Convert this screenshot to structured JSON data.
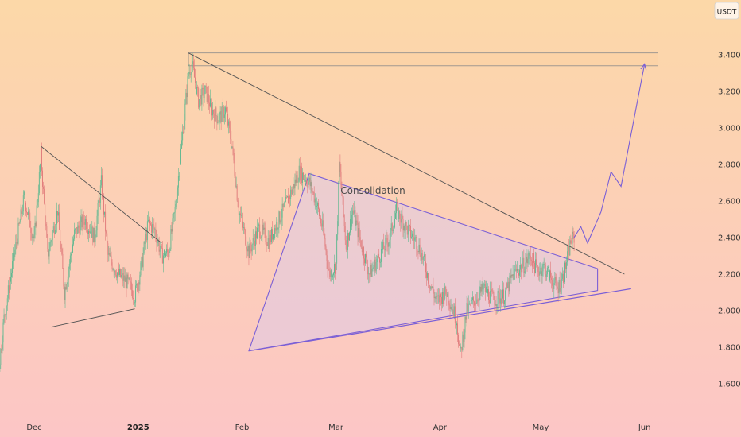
{
  "chart_data": {
    "type": "candlestick",
    "currency": "USDT",
    "ylim": [
      1.44,
      3.5
    ],
    "y_ticks": [
      {
        "value": 3.4,
        "label": "3.4000"
      },
      {
        "value": 3.2,
        "label": "3.2000"
      },
      {
        "value": 3.0,
        "label": "3.0000"
      },
      {
        "value": 2.8,
        "label": "2.8000"
      },
      {
        "value": 2.6,
        "label": "2.6000"
      },
      {
        "value": 2.4,
        "label": "2.4000"
      },
      {
        "value": 2.2,
        "label": "2.2000"
      },
      {
        "value": 2.0,
        "label": "2.0000"
      },
      {
        "value": 1.8,
        "label": "1.8000"
      },
      {
        "value": 1.6,
        "label": "1.6000"
      }
    ],
    "x_ticks": [
      {
        "date": "2024-12-01",
        "label": "Dec"
      },
      {
        "date": "2025-01-01",
        "label": "2025",
        "bold": true
      },
      {
        "date": "2025-02-01",
        "label": "Feb"
      },
      {
        "date": "2025-03-01",
        "label": "Mar"
      },
      {
        "date": "2025-04-01",
        "label": "Apr"
      },
      {
        "date": "2025-05-01",
        "label": "May"
      },
      {
        "date": "2025-06-01",
        "label": "Jun"
      }
    ],
    "grid": false,
    "price_path": [
      [
        "2024-11-10",
        1.52
      ],
      [
        "2024-11-15",
        1.5
      ],
      [
        "2024-11-20",
        1.6
      ],
      [
        "2024-11-22",
        1.96
      ],
      [
        "2024-11-25",
        2.3
      ],
      [
        "2024-11-28",
        2.62
      ],
      [
        "2024-12-01",
        2.38
      ],
      [
        "2024-12-03",
        2.85
      ],
      [
        "2024-12-05",
        2.3
      ],
      [
        "2024-12-08",
        2.55
      ],
      [
        "2024-12-10",
        2.1
      ],
      [
        "2024-12-13",
        2.42
      ],
      [
        "2024-12-16",
        2.5
      ],
      [
        "2024-12-19",
        2.4
      ],
      [
        "2024-12-21",
        2.7
      ],
      [
        "2024-12-23",
        2.3
      ],
      [
        "2024-12-26",
        2.2
      ],
      [
        "2024-12-29",
        2.15
      ],
      [
        "2024-12-31",
        2.08
      ],
      [
        "2025-01-02",
        2.25
      ],
      [
        "2025-01-04",
        2.48
      ],
      [
        "2025-01-06",
        2.44
      ],
      [
        "2025-01-08",
        2.3
      ],
      [
        "2025-01-10",
        2.32
      ],
      [
        "2025-01-12",
        2.55
      ],
      [
        "2025-01-14",
        2.92
      ],
      [
        "2025-01-16",
        3.3
      ],
      [
        "2025-01-17",
        3.35
      ],
      [
        "2025-01-19",
        3.15
      ],
      [
        "2025-01-21",
        3.2
      ],
      [
        "2025-01-23",
        3.1
      ],
      [
        "2025-01-25",
        3.05
      ],
      [
        "2025-01-27",
        3.1
      ],
      [
        "2025-01-29",
        2.9
      ],
      [
        "2025-01-31",
        2.55
      ],
      [
        "2025-02-02",
        2.4
      ],
      [
        "2025-02-03",
        2.32
      ],
      [
        "2025-02-06",
        2.45
      ],
      [
        "2025-02-09",
        2.38
      ],
      [
        "2025-02-12",
        2.5
      ],
      [
        "2025-02-15",
        2.62
      ],
      [
        "2025-02-18",
        2.76
      ],
      [
        "2025-02-21",
        2.7
      ],
      [
        "2025-02-23",
        2.6
      ],
      [
        "2025-02-25",
        2.45
      ],
      [
        "2025-02-27",
        2.2
      ],
      [
        "2025-03-01",
        2.25
      ],
      [
        "2025-03-02",
        2.8
      ],
      [
        "2025-03-04",
        2.35
      ],
      [
        "2025-03-06",
        2.55
      ],
      [
        "2025-03-08",
        2.4
      ],
      [
        "2025-03-11",
        2.2
      ],
      [
        "2025-03-14",
        2.3
      ],
      [
        "2025-03-17",
        2.4
      ],
      [
        "2025-03-19",
        2.55
      ],
      [
        "2025-03-22",
        2.45
      ],
      [
        "2025-03-25",
        2.38
      ],
      [
        "2025-03-27",
        2.28
      ],
      [
        "2025-03-29",
        2.15
      ],
      [
        "2025-03-31",
        2.05
      ],
      [
        "2025-04-03",
        2.1
      ],
      [
        "2025-04-06",
        1.95
      ],
      [
        "2025-04-07",
        1.75
      ],
      [
        "2025-04-09",
        2.0
      ],
      [
        "2025-04-11",
        2.05
      ],
      [
        "2025-04-14",
        2.12
      ],
      [
        "2025-04-17",
        2.06
      ],
      [
        "2025-04-20",
        2.08
      ],
      [
        "2025-04-23",
        2.2
      ],
      [
        "2025-04-26",
        2.25
      ],
      [
        "2025-04-28",
        2.3
      ],
      [
        "2025-04-30",
        2.22
      ],
      [
        "2025-05-02",
        2.24
      ],
      [
        "2025-05-04",
        2.18
      ],
      [
        "2025-05-06",
        2.12
      ],
      [
        "2025-05-08",
        2.2
      ],
      [
        "2025-05-10",
        2.38
      ],
      [
        "2025-05-11",
        2.4
      ]
    ],
    "drawings": {
      "resistance_zone": {
        "from": "2025-01-16",
        "to": "2025-06-05",
        "price_low": 3.34,
        "price_high": 3.41
      },
      "long_downtrend_line": {
        "from": [
          "2025-01-16",
          3.41
        ],
        "to": [
          "2025-05-26",
          2.2
        ]
      },
      "early_triangle_upper": {
        "from": [
          "2024-12-03",
          2.9
        ],
        "to": [
          "2025-01-08",
          2.37
        ]
      },
      "early_triangle_lower": {
        "from": [
          "2024-12-06",
          1.91
        ],
        "to": [
          "2024-12-31",
          2.01
        ]
      },
      "consolidation_triangle": [
        [
          "2025-02-03",
          1.78
        ],
        [
          "2025-02-21",
          2.75
        ],
        [
          "2025-05-18",
          2.23
        ],
        [
          "2025-05-18",
          2.11
        ]
      ],
      "support_line": {
        "from": [
          "2025-02-03",
          1.78
        ],
        "to": [
          "2025-05-28",
          2.12
        ]
      },
      "projection_path": [
        [
          "2025-05-11",
          2.4
        ],
        [
          "2025-05-13",
          2.46
        ],
        [
          "2025-05-15",
          2.37
        ],
        [
          "2025-05-19",
          2.54
        ],
        [
          "2025-05-22",
          2.76
        ],
        [
          "2025-05-25",
          2.68
        ],
        [
          "2025-06-01",
          3.35
        ]
      ]
    },
    "annotations": [
      {
        "text": "Consolidation",
        "date": "2025-03-12",
        "price": 2.64
      }
    ],
    "colors": {
      "background_top": "#fcd8a8",
      "background_bottom": "#fcc6c6",
      "candle_up": "#5fb890",
      "candle_down": "#e07b7b",
      "trendline": "#555555",
      "triangle_line": "#7a5fd6",
      "triangle_fill": "#d9c9f0",
      "zone_fill": "#fbd2a6",
      "zone_border": "#8a8a8a"
    }
  }
}
